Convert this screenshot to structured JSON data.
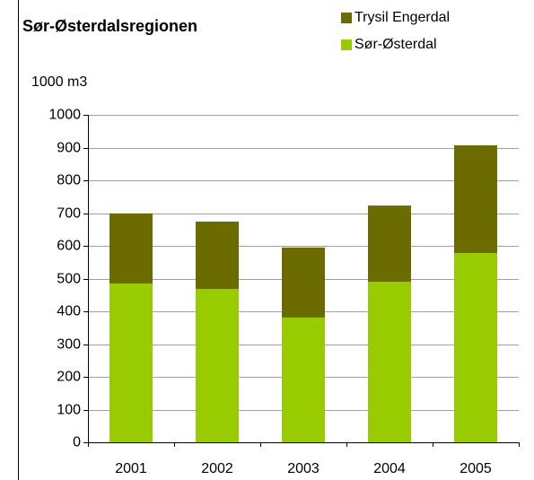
{
  "chart_data": {
    "type": "stacked_bar",
    "title": "Sør-Østerdalsregionen",
    "y_axis_label": "1000 m3",
    "categories": [
      "2001",
      "2002",
      "2003",
      "2004",
      "2005"
    ],
    "series": [
      {
        "name": "Sør-Østerdal",
        "color": "#99cc00",
        "values": [
          485,
          468,
          381,
          490,
          578
        ]
      },
      {
        "name": "Trysil Engerdal",
        "color": "#6b6b00",
        "values": [
          214,
          206,
          214,
          233,
          329
        ]
      }
    ],
    "ylim": [
      0,
      1000
    ],
    "yticks": [
      0,
      100,
      200,
      300,
      400,
      500,
      600,
      700,
      800,
      900,
      1000
    ],
    "grid": true
  }
}
